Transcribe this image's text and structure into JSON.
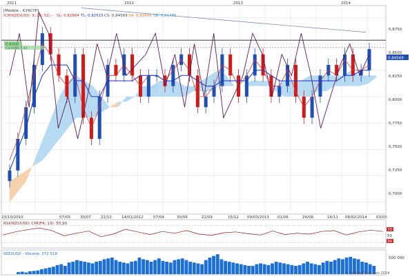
{
  "header": {
    "model": "[Modèle : ICHICYP]",
    "ichimoku": "ICH(NZD/USD; 9; 26; 52) :",
    "sl": "SL: 0,82864",
    "tl": "TL: 0,82515",
    "cs": "CS: 0,84569",
    "sa": "SA: 0,82609",
    "sb": "SB: 0,81785"
  },
  "colors": {
    "grid": "#d9dde8",
    "bull": "#1f4fb3",
    "bear": "#d01919",
    "tenkan": "#d73a2e",
    "kijun": "#1830c8",
    "chikou": "#5a1a5a",
    "cloud_bull": "#a9d4ee",
    "cloud_bear": "#f4c9a0",
    "volume": "#1b6fd6",
    "rsi": "#8b1a1a"
  },
  "price_axis": {
    "labels": [
      "0,8750",
      "0,8500",
      "0,8250",
      "0,8000",
      "0,7750",
      "0,7500",
      "0,7250",
      "0,7000"
    ],
    "current": "0,84569",
    "tag_current": "0,84569"
  },
  "tags": {
    "line1": "0,8300",
    "line2": "0,8300/0,7.41"
  },
  "year_labels": [
    "2011",
    "2012",
    "2013",
    "2014"
  ],
  "date_labels": [
    "23/10/2010",
    "07/05",
    "30/07",
    "22/10",
    "14/01/2012",
    "07/04",
    "30/06",
    "22/09",
    "15/12",
    "09/03/2013",
    "01/06",
    "24/08",
    "16/11",
    "08/02/2014",
    "03/05"
  ],
  "rsi": {
    "title": "RSI(NZD/USD; CMUFR; 13): 55,90",
    "levels": [
      "70",
      "50",
      "30"
    ]
  },
  "volume": {
    "title": "NZD/USD - Volume: 372 518",
    "axis_label": "500 000"
  },
  "footer": {
    "copyright": "© ProRealTime.com 2014"
  },
  "chart_data": {
    "type": "line",
    "title": "[Modèle : ICHICYP]",
    "y_axis": {
      "min": 0.69,
      "max": 0.885,
      "ticks": [
        0.875,
        0.85,
        0.825,
        0.8,
        0.775,
        0.75,
        0.725,
        0.7
      ]
    },
    "x_categories": [
      "23/10/2010",
      "07/05",
      "30/07",
      "22/10",
      "14/01/2012",
      "07/04",
      "30/06",
      "22/09",
      "15/12",
      "09/03/2013",
      "01/06",
      "24/08",
      "16/11",
      "08/02/2014",
      "03/05"
    ],
    "price_close": [
      0.73,
      0.76,
      0.79,
      0.83,
      0.86,
      0.84,
      0.82,
      0.8,
      0.84,
      0.78,
      0.76,
      0.8,
      0.83,
      0.82,
      0.84,
      0.82,
      0.8,
      0.82,
      0.82,
      0.81,
      0.83,
      0.84,
      0.82,
      0.79,
      0.8,
      0.81,
      0.84,
      0.82,
      0.8,
      0.82,
      0.84,
      0.82,
      0.8,
      0.81,
      0.83,
      0.8,
      0.78,
      0.8,
      0.82,
      0.83,
      0.82,
      0.84,
      0.82,
      0.825,
      0.845
    ],
    "tenkan": [
      0.74,
      0.76,
      0.79,
      0.82,
      0.85,
      0.84,
      0.82,
      0.81,
      0.82,
      0.79,
      0.77,
      0.79,
      0.82,
      0.82,
      0.83,
      0.82,
      0.81,
      0.82,
      0.82,
      0.815,
      0.825,
      0.835,
      0.825,
      0.8,
      0.8,
      0.81,
      0.83,
      0.825,
      0.81,
      0.82,
      0.835,
      0.825,
      0.81,
      0.81,
      0.825,
      0.805,
      0.79,
      0.8,
      0.815,
      0.825,
      0.82,
      0.835,
      0.825,
      0.825,
      0.83
    ],
    "kijun": [
      0.73,
      0.75,
      0.77,
      0.8,
      0.82,
      0.83,
      0.83,
      0.83,
      0.815,
      0.815,
      0.8,
      0.8,
      0.815,
      0.815,
      0.815,
      0.815,
      0.82,
      0.82,
      0.82,
      0.815,
      0.815,
      0.82,
      0.82,
      0.815,
      0.81,
      0.81,
      0.815,
      0.815,
      0.815,
      0.815,
      0.825,
      0.825,
      0.82,
      0.815,
      0.815,
      0.815,
      0.815,
      0.815,
      0.815,
      0.815,
      0.815,
      0.82,
      0.82,
      0.825,
      0.825
    ],
    "chikou": [
      0.82,
      0.86,
      0.79,
      0.88,
      0.86,
      0.77,
      0.8,
      0.76,
      0.8,
      0.85,
      0.82,
      0.86,
      0.82,
      0.83,
      0.84,
      0.86,
      0.81,
      0.84,
      0.79,
      0.85,
      0.8,
      0.86,
      0.78,
      0.8,
      0.82,
      0.86,
      0.84,
      0.8,
      0.84,
      0.82,
      0.86,
      0.82,
      0.77,
      0.8,
      0.83,
      0.85,
      0.82,
      0.84
    ],
    "cloud_a": [
      0.7,
      0.71,
      0.72,
      0.74,
      0.76,
      0.78,
      0.8,
      0.815,
      0.82,
      0.815,
      0.81,
      0.8,
      0.79,
      0.79,
      0.8,
      0.8,
      0.81,
      0.81,
      0.815,
      0.815,
      0.815,
      0.81,
      0.81,
      0.815,
      0.82,
      0.825,
      0.82,
      0.81,
      0.81,
      0.815,
      0.815,
      0.815,
      0.81,
      0.815,
      0.815,
      0.815,
      0.82,
      0.82,
      0.82,
      0.82,
      0.82,
      0.825,
      0.82,
      0.82,
      0.82
    ],
    "cloud_b": [
      0.72,
      0.725,
      0.73,
      0.735,
      0.74,
      0.75,
      0.76,
      0.77,
      0.78,
      0.78,
      0.78,
      0.785,
      0.79,
      0.795,
      0.795,
      0.8,
      0.8,
      0.8,
      0.8,
      0.8,
      0.8,
      0.8,
      0.805,
      0.805,
      0.805,
      0.81,
      0.81,
      0.81,
      0.81,
      0.81,
      0.81,
      0.81,
      0.805,
      0.8,
      0.8,
      0.8,
      0.8,
      0.805,
      0.805,
      0.81,
      0.81,
      0.81,
      0.81,
      0.812,
      0.818
    ],
    "resistance_level": 0.8535,
    "support_level": 0.8465,
    "rsi_values": [
      48,
      55,
      60,
      64,
      58,
      46,
      52,
      57,
      44,
      50,
      61,
      55,
      49,
      56,
      52,
      58,
      50,
      47,
      53,
      55,
      51,
      48,
      57,
      49,
      52,
      50,
      56,
      58,
      48,
      55,
      59,
      56
    ],
    "volume_values": [
      5,
      6,
      4,
      7,
      8,
      9,
      12,
      14,
      16,
      18,
      22,
      24,
      20,
      28,
      30,
      34,
      32,
      30,
      28,
      26,
      30,
      32,
      36,
      38,
      40,
      34,
      30,
      28,
      26,
      30,
      32,
      40,
      36,
      34,
      30,
      34,
      38,
      32,
      30,
      28,
      34,
      36,
      38,
      34,
      30,
      28,
      26,
      24,
      34,
      40,
      44,
      48,
      36,
      32,
      30,
      28,
      26,
      24,
      22,
      20,
      20,
      24,
      26,
      24,
      22,
      26,
      30,
      28,
      26,
      24,
      22,
      20,
      22,
      26,
      30,
      26,
      24,
      22,
      28,
      32,
      30,
      34,
      38,
      36,
      40,
      42,
      38,
      36,
      30,
      28,
      24,
      20
    ]
  }
}
